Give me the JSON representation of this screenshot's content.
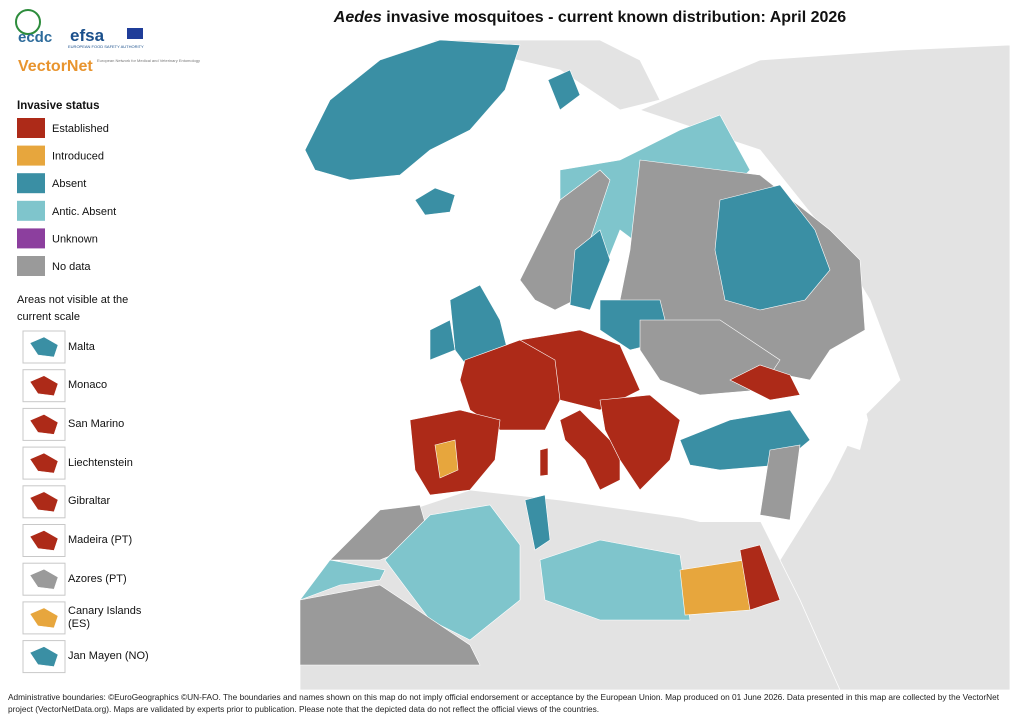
{
  "title": {
    "italic": "Aedes",
    "rest": "invasive mosquitoes - current known distribution: April 2026"
  },
  "logos": {
    "ecdc": "ecdc",
    "efsa": "efsa",
    "efsa_sub": "EUROPEAN FOOD SAFETY AUTHORITY",
    "vectornet": "VectorNet",
    "vectornet_sub": "European Network for Medical and Veterinary Entomology"
  },
  "legend": {
    "title": "Invasive status",
    "items": [
      {
        "label": "Established",
        "color": "#ad2a18"
      },
      {
        "label": "Introduced",
        "color": "#e7a63d"
      },
      {
        "label": "Absent",
        "color": "#3a8fa4"
      },
      {
        "label": "Antic. Absent",
        "color": "#7fc5cc"
      },
      {
        "label": "Unknown",
        "color": "#8c3f9e"
      },
      {
        "label": "No data",
        "color": "#9a9a9a"
      }
    ]
  },
  "areas": {
    "title_line1": "Areas not visible at the",
    "title_line2": "current scale",
    "items": [
      {
        "label": "Malta",
        "status": 2
      },
      {
        "label": "Monaco",
        "status": 0
      },
      {
        "label": "San Marino",
        "status": 0
      },
      {
        "label": "Liechtenstein",
        "status": 0
      },
      {
        "label": "Gibraltar",
        "status": 0
      },
      {
        "label": "Madeira (PT)",
        "status": 0
      },
      {
        "label": "Azores (PT)",
        "status": 5
      },
      {
        "label": "Canary Islands (ES)",
        "status": 1
      },
      {
        "label": "Jan Mayen (NO)",
        "status": 2
      }
    ]
  },
  "footer": "Administrative boundaries: ©EuroGeographics ©UN-FAO. The boundaries and names shown on this map do not imply official endorsement or acceptance by the European Union. Map produced on 01 June 2026. Data presented in this map are collected by the VectorNet project (VectorNetData.org). Maps are validated by experts prior to publication. Please note that the depicted data do not reflect the official views of the countries."
}
